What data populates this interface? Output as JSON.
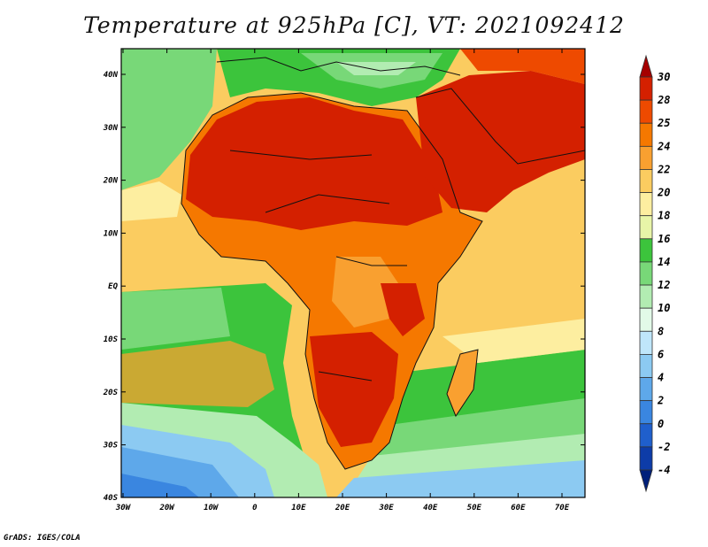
{
  "title": "Temperature at 925hPa [C], VT: 2021092412",
  "credit": "GrADS: IGES/COLA",
  "map": {
    "lat_labels": [
      "40N",
      "30N",
      "20N",
      "10N",
      "EQ",
      "10S",
      "20S",
      "30S",
      "40S"
    ],
    "lon_labels": [
      "30W",
      "20W",
      "10W",
      "0",
      "10E",
      "20E",
      "30E",
      "40E",
      "50E",
      "60E",
      "70E"
    ]
  },
  "colorbar": {
    "levels": [
      "30",
      "28",
      "25",
      "24",
      "22",
      "20",
      "18",
      "16",
      "14",
      "12",
      "10",
      "8",
      "6",
      "4",
      "2",
      "0",
      "-2",
      "-4"
    ],
    "colors": [
      "#a50000",
      "#d42000",
      "#ee4a00",
      "#f57800",
      "#f9a030",
      "#fbcc60",
      "#fdeea0",
      "#e8f5a8",
      "#3cc43c",
      "#78d878",
      "#b2ecb2",
      "#e2fae8",
      "#bfe6fa",
      "#8ccaf2",
      "#5ea8ea",
      "#3a86e0",
      "#1f5fcc",
      "#0d3ca8",
      "#00207a"
    ]
  }
}
